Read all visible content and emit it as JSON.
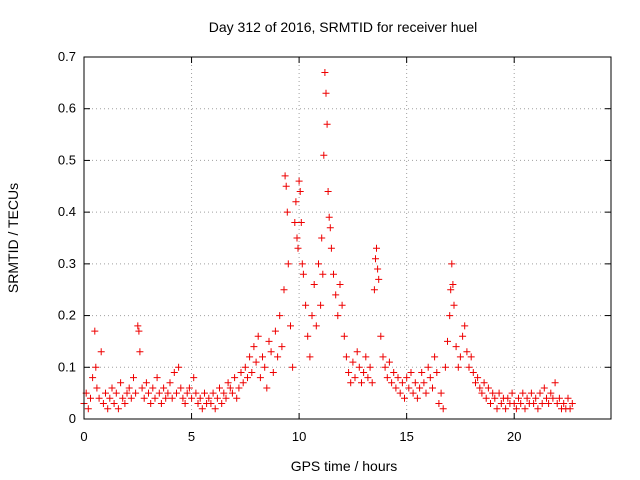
{
  "chart_data": {
    "type": "scatter",
    "title": "Day 312 of 2016, SRMTID for receiver huel",
    "xlabel": "GPS time / hours",
    "ylabel": "SRMTID / TECUs",
    "xlim": [
      0,
      24.5
    ],
    "ylim": [
      0,
      0.7
    ],
    "xticks": [
      0,
      5,
      10,
      15,
      20
    ],
    "yticks": [
      0,
      0.1,
      0.2,
      0.3,
      0.4,
      0.5,
      0.6,
      0.7
    ],
    "xtick_labels": [
      "0",
      "5",
      "10",
      "15",
      "20"
    ],
    "ytick_labels": [
      "0",
      "0.1",
      "0.2",
      "0.3",
      "0.4",
      "0.5",
      "0.6",
      "0.7"
    ],
    "grid": true,
    "marker": "+",
    "color": "#ee0000",
    "series": [
      {
        "name": "SRMTID",
        "points": [
          [
            0.0,
            0.03
          ],
          [
            0.1,
            0.05
          ],
          [
            0.2,
            0.02
          ],
          [
            0.3,
            0.04
          ],
          [
            0.4,
            0.08
          ],
          [
            0.5,
            0.17
          ],
          [
            0.55,
            0.1
          ],
          [
            0.6,
            0.06
          ],
          [
            0.7,
            0.04
          ],
          [
            0.8,
            0.13
          ],
          [
            0.9,
            0.03
          ],
          [
            1.0,
            0.05
          ],
          [
            1.1,
            0.02
          ],
          [
            1.2,
            0.04
          ],
          [
            1.3,
            0.06
          ],
          [
            1.4,
            0.03
          ],
          [
            1.5,
            0.05
          ],
          [
            1.6,
            0.02
          ],
          [
            1.7,
            0.07
          ],
          [
            1.8,
            0.04
          ],
          [
            1.9,
            0.03
          ],
          [
            2.0,
            0.05
          ],
          [
            2.1,
            0.06
          ],
          [
            2.2,
            0.04
          ],
          [
            2.3,
            0.08
          ],
          [
            2.4,
            0.05
          ],
          [
            2.5,
            0.18
          ],
          [
            2.55,
            0.17
          ],
          [
            2.6,
            0.13
          ],
          [
            2.7,
            0.06
          ],
          [
            2.8,
            0.04
          ],
          [
            2.9,
            0.07
          ],
          [
            3.0,
            0.05
          ],
          [
            3.1,
            0.03
          ],
          [
            3.2,
            0.06
          ],
          [
            3.3,
            0.04
          ],
          [
            3.4,
            0.08
          ],
          [
            3.5,
            0.05
          ],
          [
            3.6,
            0.03
          ],
          [
            3.7,
            0.06
          ],
          [
            3.8,
            0.04
          ],
          [
            3.9,
            0.05
          ],
          [
            4.0,
            0.07
          ],
          [
            4.1,
            0.04
          ],
          [
            4.2,
            0.09
          ],
          [
            4.3,
            0.05
          ],
          [
            4.4,
            0.1
          ],
          [
            4.5,
            0.06
          ],
          [
            4.6,
            0.04
          ],
          [
            4.7,
            0.03
          ],
          [
            4.8,
            0.05
          ],
          [
            4.9,
            0.06
          ],
          [
            5.0,
            0.04
          ],
          [
            5.1,
            0.08
          ],
          [
            5.2,
            0.05
          ],
          [
            5.3,
            0.03
          ],
          [
            5.4,
            0.04
          ],
          [
            5.5,
            0.02
          ],
          [
            5.6,
            0.05
          ],
          [
            5.7,
            0.03
          ],
          [
            5.8,
            0.04
          ],
          [
            5.9,
            0.03
          ],
          [
            6.0,
            0.05
          ],
          [
            6.1,
            0.02
          ],
          [
            6.2,
            0.04
          ],
          [
            6.3,
            0.06
          ],
          [
            6.4,
            0.03
          ],
          [
            6.5,
            0.05
          ],
          [
            6.6,
            0.04
          ],
          [
            6.7,
            0.07
          ],
          [
            6.8,
            0.06
          ],
          [
            6.9,
            0.05
          ],
          [
            7.0,
            0.08
          ],
          [
            7.1,
            0.04
          ],
          [
            7.2,
            0.06
          ],
          [
            7.3,
            0.09
          ],
          [
            7.4,
            0.07
          ],
          [
            7.5,
            0.1
          ],
          [
            7.6,
            0.08
          ],
          [
            7.7,
            0.12
          ],
          [
            7.8,
            0.09
          ],
          [
            7.9,
            0.14
          ],
          [
            8.0,
            0.11
          ],
          [
            8.1,
            0.16
          ],
          [
            8.2,
            0.08
          ],
          [
            8.3,
            0.12
          ],
          [
            8.4,
            0.1
          ],
          [
            8.5,
            0.06
          ],
          [
            8.6,
            0.15
          ],
          [
            8.7,
            0.13
          ],
          [
            8.8,
            0.09
          ],
          [
            8.9,
            0.17
          ],
          [
            9.0,
            0.12
          ],
          [
            9.1,
            0.2
          ],
          [
            9.2,
            0.14
          ],
          [
            9.3,
            0.25
          ],
          [
            9.35,
            0.47
          ],
          [
            9.4,
            0.45
          ],
          [
            9.45,
            0.4
          ],
          [
            9.5,
            0.3
          ],
          [
            9.6,
            0.18
          ],
          [
            9.7,
            0.1
          ],
          [
            9.8,
            0.38
          ],
          [
            9.85,
            0.42
          ],
          [
            9.9,
            0.35
          ],
          [
            9.95,
            0.33
          ],
          [
            10.0,
            0.46
          ],
          [
            10.05,
            0.44
          ],
          [
            10.1,
            0.38
          ],
          [
            10.15,
            0.3
          ],
          [
            10.2,
            0.28
          ],
          [
            10.3,
            0.22
          ],
          [
            10.4,
            0.16
          ],
          [
            10.5,
            0.12
          ],
          [
            10.6,
            0.2
          ],
          [
            10.7,
            0.26
          ],
          [
            10.8,
            0.18
          ],
          [
            10.9,
            0.3
          ],
          [
            11.0,
            0.22
          ],
          [
            11.05,
            0.35
          ],
          [
            11.1,
            0.28
          ],
          [
            11.15,
            0.51
          ],
          [
            11.2,
            0.67
          ],
          [
            11.25,
            0.63
          ],
          [
            11.3,
            0.57
          ],
          [
            11.35,
            0.44
          ],
          [
            11.4,
            0.39
          ],
          [
            11.45,
            0.37
          ],
          [
            11.5,
            0.33
          ],
          [
            11.6,
            0.28
          ],
          [
            11.7,
            0.24
          ],
          [
            11.8,
            0.2
          ],
          [
            11.9,
            0.26
          ],
          [
            12.0,
            0.22
          ],
          [
            12.1,
            0.16
          ],
          [
            12.2,
            0.12
          ],
          [
            12.3,
            0.09
          ],
          [
            12.4,
            0.07
          ],
          [
            12.5,
            0.11
          ],
          [
            12.6,
            0.08
          ],
          [
            12.7,
            0.13
          ],
          [
            12.8,
            0.1
          ],
          [
            12.9,
            0.07
          ],
          [
            13.0,
            0.09
          ],
          [
            13.1,
            0.12
          ],
          [
            13.2,
            0.08
          ],
          [
            13.3,
            0.1
          ],
          [
            13.4,
            0.07
          ],
          [
            13.5,
            0.25
          ],
          [
            13.55,
            0.31
          ],
          [
            13.6,
            0.33
          ],
          [
            13.65,
            0.29
          ],
          [
            13.7,
            0.27
          ],
          [
            13.8,
            0.16
          ],
          [
            13.9,
            0.12
          ],
          [
            14.0,
            0.1
          ],
          [
            14.1,
            0.08
          ],
          [
            14.2,
            0.11
          ],
          [
            14.3,
            0.07
          ],
          [
            14.4,
            0.09
          ],
          [
            14.5,
            0.06
          ],
          [
            14.6,
            0.08
          ],
          [
            14.7,
            0.05
          ],
          [
            14.8,
            0.07
          ],
          [
            14.9,
            0.04
          ],
          [
            15.0,
            0.08
          ],
          [
            15.1,
            0.06
          ],
          [
            15.2,
            0.09
          ],
          [
            15.3,
            0.05
          ],
          [
            15.4,
            0.07
          ],
          [
            15.5,
            0.04
          ],
          [
            15.6,
            0.06
          ],
          [
            15.7,
            0.09
          ],
          [
            15.8,
            0.07
          ],
          [
            15.9,
            0.05
          ],
          [
            16.0,
            0.1
          ],
          [
            16.1,
            0.08
          ],
          [
            16.2,
            0.06
          ],
          [
            16.3,
            0.12
          ],
          [
            16.4,
            0.09
          ],
          [
            16.5,
            0.03
          ],
          [
            16.6,
            0.05
          ],
          [
            16.7,
            0.02
          ],
          [
            16.8,
            0.1
          ],
          [
            16.9,
            0.15
          ],
          [
            17.0,
            0.2
          ],
          [
            17.05,
            0.25
          ],
          [
            17.1,
            0.3
          ],
          [
            17.15,
            0.26
          ],
          [
            17.2,
            0.22
          ],
          [
            17.3,
            0.14
          ],
          [
            17.4,
            0.1
          ],
          [
            17.5,
            0.12
          ],
          [
            17.6,
            0.16
          ],
          [
            17.7,
            0.18
          ],
          [
            17.8,
            0.13
          ],
          [
            17.9,
            0.1
          ],
          [
            18.0,
            0.12
          ],
          [
            18.1,
            0.09
          ],
          [
            18.2,
            0.07
          ],
          [
            18.3,
            0.08
          ],
          [
            18.4,
            0.06
          ],
          [
            18.5,
            0.05
          ],
          [
            18.6,
            0.07
          ],
          [
            18.7,
            0.04
          ],
          [
            18.8,
            0.06
          ],
          [
            18.9,
            0.03
          ],
          [
            19.0,
            0.05
          ],
          [
            19.1,
            0.04
          ],
          [
            19.2,
            0.02
          ],
          [
            19.3,
            0.05
          ],
          [
            19.4,
            0.03
          ],
          [
            19.5,
            0.04
          ],
          [
            19.6,
            0.02
          ],
          [
            19.7,
            0.04
          ],
          [
            19.8,
            0.03
          ],
          [
            19.9,
            0.05
          ],
          [
            20.0,
            0.03
          ],
          [
            20.1,
            0.02
          ],
          [
            20.2,
            0.04
          ],
          [
            20.3,
            0.03
          ],
          [
            20.4,
            0.05
          ],
          [
            20.5,
            0.02
          ],
          [
            20.6,
            0.04
          ],
          [
            20.7,
            0.03
          ],
          [
            20.8,
            0.05
          ],
          [
            20.9,
            0.03
          ],
          [
            21.0,
            0.04
          ],
          [
            21.1,
            0.02
          ],
          [
            21.2,
            0.05
          ],
          [
            21.3,
            0.03
          ],
          [
            21.4,
            0.06
          ],
          [
            21.5,
            0.04
          ],
          [
            21.6,
            0.03
          ],
          [
            21.7,
            0.05
          ],
          [
            21.8,
            0.04
          ],
          [
            21.9,
            0.07
          ],
          [
            22.0,
            0.03
          ],
          [
            22.1,
            0.04
          ],
          [
            22.2,
            0.02
          ],
          [
            22.3,
            0.03
          ],
          [
            22.4,
            0.02
          ],
          [
            22.5,
            0.04
          ],
          [
            22.6,
            0.02
          ],
          [
            22.7,
            0.03
          ]
        ]
      }
    ]
  }
}
